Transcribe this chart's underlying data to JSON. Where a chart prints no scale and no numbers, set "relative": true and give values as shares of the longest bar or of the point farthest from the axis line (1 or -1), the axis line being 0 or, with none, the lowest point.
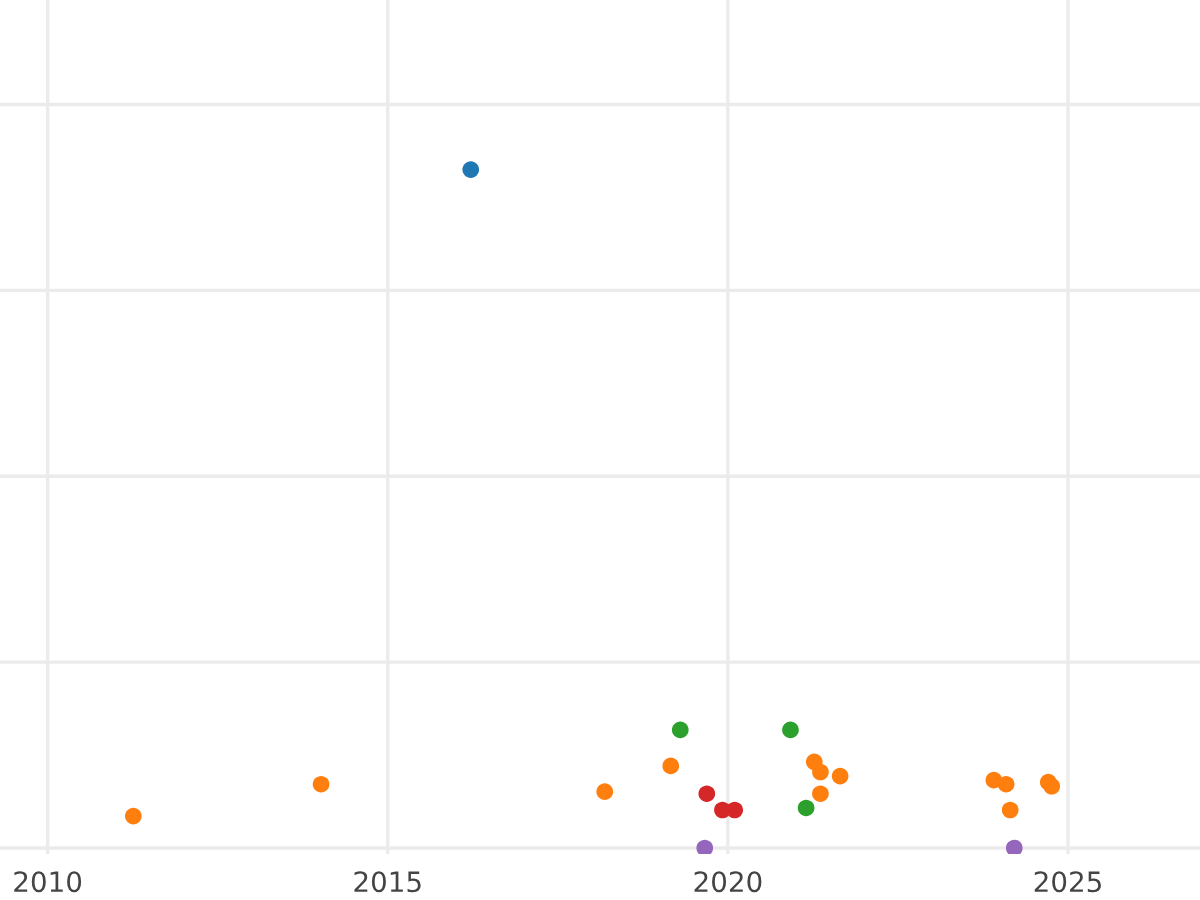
{
  "chart_data": {
    "type": "scatter",
    "relative": true,
    "grid": true,
    "marker": "circle",
    "xlim": [
      2009.3,
      2026.94
    ],
    "xticks": [
      2010,
      2015,
      2020,
      2025
    ],
    "tick_labels": "x",
    "series": [
      {
        "color": "#1f77b4",
        "x": [
          2016.22
        ],
        "values": [
          1
        ]
      },
      {
        "color": "#ff7f0e",
        "x": [
          2011.26,
          2014.02,
          2018.19,
          2019.16,
          2021.27,
          2021.36,
          2021.65,
          2021.36,
          2023.91,
          2024.09,
          2024.15,
          2024.71,
          2024.76
        ],
        "values": [
          0.047,
          0.094,
          0.083,
          0.121,
          0.127,
          0.112,
          0.106,
          0.08,
          0.1,
          0.094,
          0.056,
          0.097,
          0.091
        ]
      },
      {
        "color": "#2ca02c",
        "x": [
          2019.3,
          2020.92,
          2021.15
        ],
        "values": [
          0.174,
          0.174,
          0.059
        ]
      },
      {
        "color": "#d62728",
        "x": [
          2019.69,
          2019.92,
          2020.1
        ],
        "values": [
          0.08,
          0.056,
          0.056
        ]
      },
      {
        "color": "#9467bd",
        "x": [
          2019.66,
          2024.21
        ],
        "values": [
          0,
          0
        ]
      }
    ]
  }
}
